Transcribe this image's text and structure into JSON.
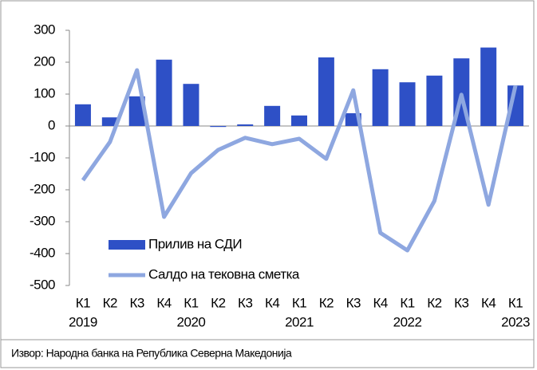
{
  "chart_data": {
    "type": "bar",
    "categories": [
      "К1",
      "К2",
      "К3",
      "К4",
      "К1",
      "К2",
      "К3",
      "К4",
      "К1",
      "К2",
      "К3",
      "К4",
      "К1",
      "К2",
      "К3",
      "К4",
      "К1"
    ],
    "years": [
      "2019",
      null,
      null,
      null,
      "2020",
      null,
      null,
      null,
      "2021",
      null,
      null,
      null,
      "2022",
      null,
      null,
      null,
      "2023"
    ],
    "series": [
      {
        "name": "Прилив на СДИ",
        "type": "bar",
        "color": "#2e50c6",
        "values": [
          68,
          27,
          93,
          208,
          132,
          -3,
          5,
          63,
          33,
          215,
          40,
          178,
          137,
          158,
          212,
          246,
          127
        ]
      },
      {
        "name": "Салдо на тековна сметка",
        "type": "line",
        "color": "#8ea7e0",
        "values": [
          -170,
          -50,
          175,
          -285,
          -148,
          -75,
          -37,
          -57,
          -40,
          -103,
          112,
          -335,
          -390,
          -235,
          98,
          -247,
          127
        ]
      }
    ],
    "ylim": [
      -500,
      300
    ],
    "yticks": [
      -500,
      -400,
      -300,
      -200,
      -100,
      0,
      100,
      200,
      300
    ],
    "legend": "lower-left",
    "source": "Извор: Народна банка на Република Северна Македонија"
  }
}
